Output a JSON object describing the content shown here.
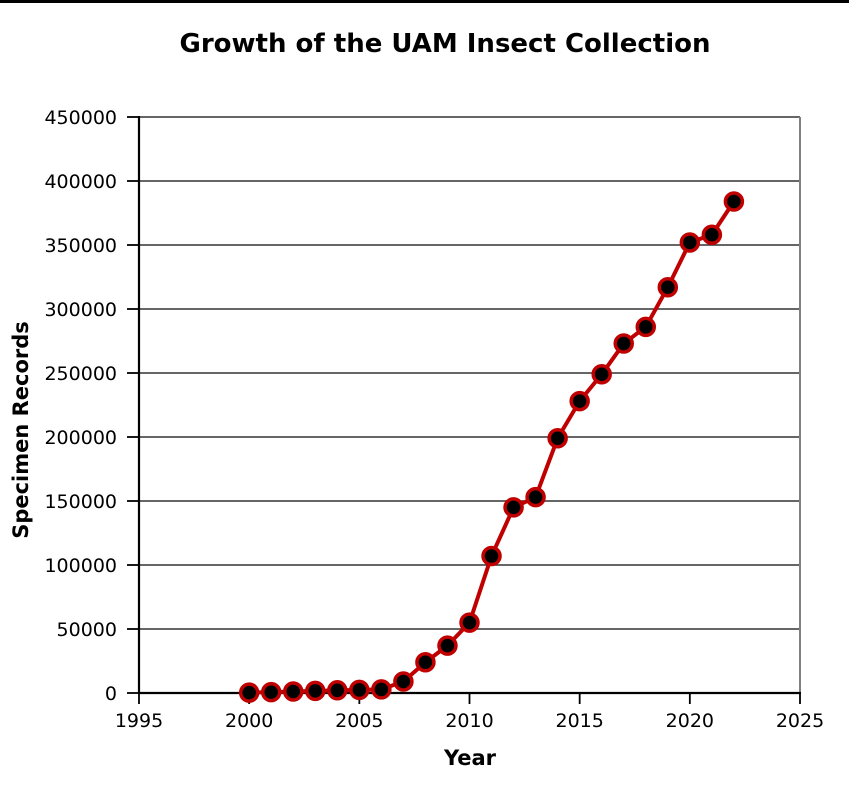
{
  "page": {
    "background": "#ffffff",
    "top_border_color": "#000000"
  },
  "chart_data": {
    "type": "line",
    "title": "Growth of the UAM Insect Collection",
    "xlabel": "Year",
    "ylabel": "Specimen Records",
    "x": [
      2000,
      2001,
      2002,
      2003,
      2004,
      2005,
      2006,
      2007,
      2008,
      2009,
      2010,
      2011,
      2012,
      2013,
      2014,
      2015,
      2016,
      2017,
      2018,
      2019,
      2020,
      2021,
      2022
    ],
    "values": [
      300,
      700,
      1200,
      1700,
      2100,
      2400,
      2800,
      9000,
      24000,
      37000,
      55000,
      107000,
      145000,
      153000,
      199000,
      228000,
      249000,
      273000,
      286000,
      317000,
      352000,
      358000,
      384000
    ],
    "xlim": [
      1995,
      2025
    ],
    "ylim": [
      0,
      450000
    ],
    "x_ticks": [
      1995,
      2000,
      2005,
      2010,
      2015,
      2020,
      2025
    ],
    "y_ticks": [
      0,
      50000,
      100000,
      150000,
      200000,
      250000,
      300000,
      350000,
      400000,
      450000
    ],
    "grid": "horizontal",
    "legend": "none",
    "marker": "filled-circle",
    "line_color": "#c00000",
    "marker_fill": "#000000",
    "marker_stroke": "#c00000",
    "axis_color": "#000000",
    "grid_color": "#333333",
    "right_border_color": "#808080"
  }
}
